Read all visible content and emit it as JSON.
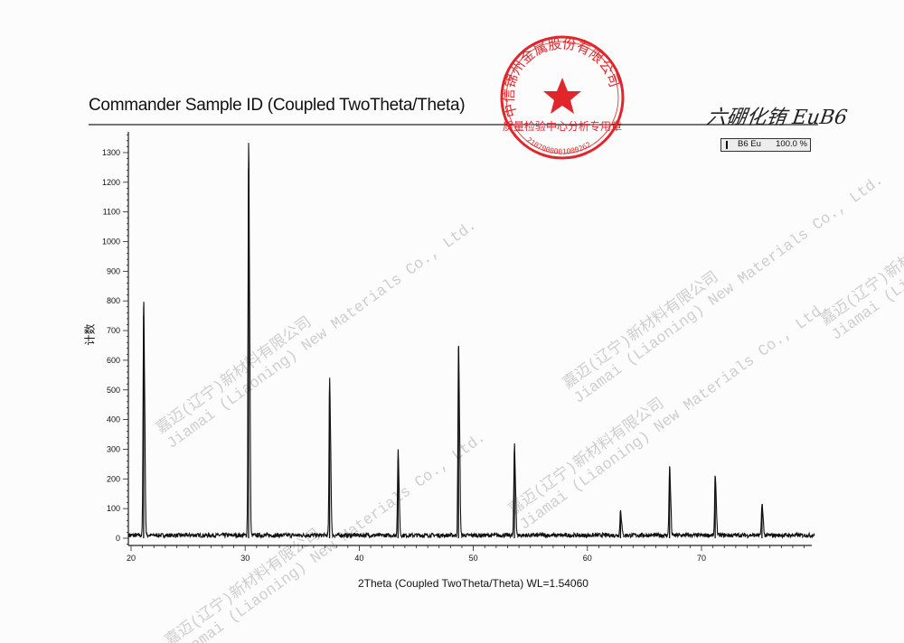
{
  "header": {
    "title": "Commander Sample ID (Coupled TwoTheta/Theta)",
    "handwritten_note": "六硼化铕 EuB6"
  },
  "legend": {
    "name": "B6 Eu",
    "percent": "100.0 %"
  },
  "stamp": {
    "outer_text": "中信锦州金属股份有限公司",
    "inner_text": "质量检验中心分析专用章",
    "number": "2107000001000262",
    "color": "#e0262b"
  },
  "watermark": {
    "line1": "嘉迈(辽宁)新材料有限公司",
    "line2": "Jiamai (Liaoning) New Materials Co., Ltd."
  },
  "chart_data": {
    "type": "line",
    "title": "Commander Sample ID (Coupled TwoTheta/Theta)",
    "xlabel": "2Theta (Coupled TwoTheta/Theta) WL=1.54060",
    "ylabel": "计数",
    "xlim": [
      19.8,
      80
    ],
    "ylim": [
      -20,
      1360
    ],
    "xticks": [
      20,
      30,
      40,
      50,
      60,
      70
    ],
    "yticks": [
      0,
      100,
      200,
      300,
      400,
      500,
      600,
      700,
      800,
      900,
      1000,
      1100,
      1200,
      1300
    ],
    "baseline": 10,
    "series": [
      {
        "name": "B6 Eu",
        "peaks_2theta": [
          21.1,
          30.3,
          37.4,
          43.4,
          48.7,
          53.6,
          62.9,
          67.2,
          71.2,
          75.3
        ],
        "peaks_counts": [
          750,
          1245,
          495,
          265,
          615,
          290,
          80,
          222,
          192,
          103
        ]
      }
    ],
    "legend_position": "top-right",
    "grid": false,
    "color": "#111111"
  }
}
